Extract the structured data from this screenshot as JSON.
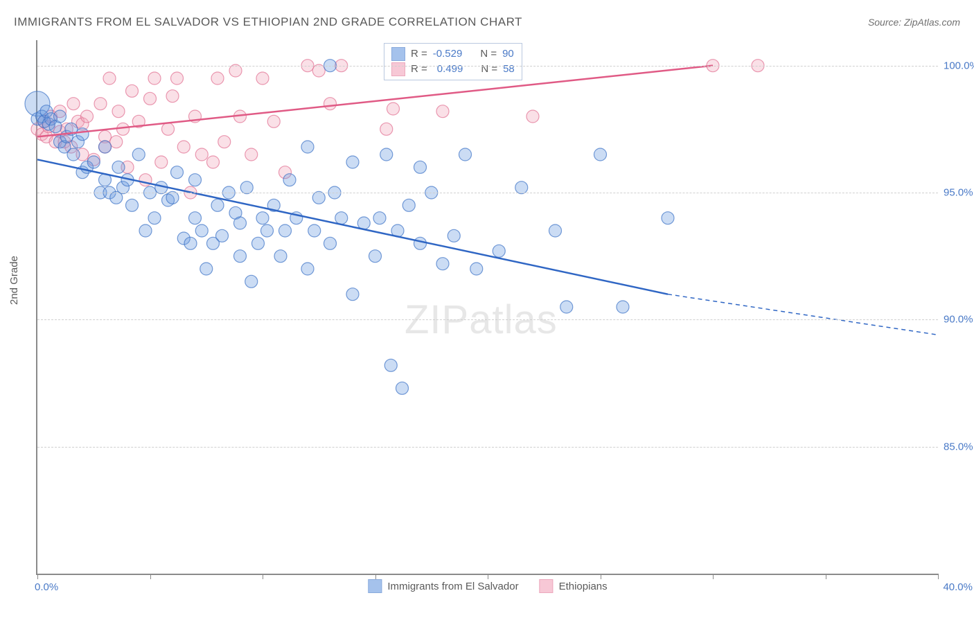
{
  "title": "IMMIGRANTS FROM EL SALVADOR VS ETHIOPIAN 2ND GRADE CORRELATION CHART",
  "source": "Source: ZipAtlas.com",
  "watermark": "ZIPatlas",
  "ylabel": "2nd Grade",
  "chart": {
    "type": "scatter-with-regression",
    "background_color": "#ffffff",
    "grid_color": "#cfcfcf",
    "axis_color": "#8a8a8a",
    "tick_label_color": "#4a7ac7",
    "label_color": "#5a5a5a",
    "title_fontsize": 17,
    "label_fontsize": 15,
    "xlim": [
      0,
      40
    ],
    "ylim": [
      80,
      101
    ],
    "ytick_positions": [
      85,
      90,
      95,
      100
    ],
    "ytick_labels": [
      "85.0%",
      "90.0%",
      "95.0%",
      "100.0%"
    ],
    "xtick_positions": [
      0,
      5,
      10,
      15,
      20,
      25,
      30,
      35,
      40
    ],
    "xlim_labels": {
      "min": "0.0%",
      "max": "40.0%"
    },
    "marker_radius": 9,
    "marker_radius_large": 18,
    "marker_fill_opacity": 0.35,
    "marker_stroke_width": 1.2,
    "series": [
      {
        "name": "Immigrants from El Salvador",
        "color": "#6a9ae0",
        "stroke": "#3c72c6",
        "line_color": "#2f66c4",
        "line_width": 2.5,
        "R": "-0.529",
        "N": "90",
        "regression": {
          "x1": 0,
          "y1": 96.3,
          "x2": 28,
          "y2": 91.0,
          "dash_x2": 40,
          "dash_y2": 89.4
        },
        "points": [
          [
            0.0,
            97.9
          ],
          [
            0.2,
            98.0
          ],
          [
            0.3,
            97.8
          ],
          [
            0.4,
            98.2
          ],
          [
            0.5,
            97.7
          ],
          [
            0.6,
            97.9
          ],
          [
            0.8,
            97.6
          ],
          [
            1.0,
            98.0
          ],
          [
            1.0,
            97.0
          ],
          [
            1.2,
            96.8
          ],
          [
            1.3,
            97.2
          ],
          [
            1.5,
            97.5
          ],
          [
            1.6,
            96.5
          ],
          [
            1.8,
            97.0
          ],
          [
            2.0,
            97.3
          ],
          [
            2.0,
            95.8
          ],
          [
            2.2,
            96.0
          ],
          [
            2.5,
            96.2
          ],
          [
            2.8,
            95.0
          ],
          [
            3.0,
            96.8
          ],
          [
            3.0,
            95.5
          ],
          [
            3.2,
            95.0
          ],
          [
            3.5,
            94.8
          ],
          [
            3.6,
            96.0
          ],
          [
            3.8,
            95.2
          ],
          [
            4.0,
            95.5
          ],
          [
            4.2,
            94.5
          ],
          [
            4.5,
            96.5
          ],
          [
            4.8,
            93.5
          ],
          [
            5.0,
            95.0
          ],
          [
            5.2,
            94.0
          ],
          [
            5.5,
            95.2
          ],
          [
            5.8,
            94.7
          ],
          [
            6.0,
            94.8
          ],
          [
            6.2,
            95.8
          ],
          [
            6.5,
            93.2
          ],
          [
            6.8,
            93.0
          ],
          [
            7.0,
            94.0
          ],
          [
            7.0,
            95.5
          ],
          [
            7.3,
            93.5
          ],
          [
            7.5,
            92.0
          ],
          [
            7.8,
            93.0
          ],
          [
            8.0,
            94.5
          ],
          [
            8.2,
            93.3
          ],
          [
            8.5,
            95.0
          ],
          [
            8.8,
            94.2
          ],
          [
            9.0,
            92.5
          ],
          [
            9.0,
            93.8
          ],
          [
            9.3,
            95.2
          ],
          [
            9.5,
            91.5
          ],
          [
            9.8,
            93.0
          ],
          [
            10.0,
            94.0
          ],
          [
            10.2,
            93.5
          ],
          [
            10.5,
            94.5
          ],
          [
            10.8,
            92.5
          ],
          [
            11.0,
            93.5
          ],
          [
            11.2,
            95.5
          ],
          [
            11.5,
            94.0
          ],
          [
            12.0,
            92.0
          ],
          [
            12.0,
            96.8
          ],
          [
            12.3,
            93.5
          ],
          [
            12.5,
            94.8
          ],
          [
            13.0,
            100.0
          ],
          [
            13.0,
            93.0
          ],
          [
            13.2,
            95.0
          ],
          [
            13.5,
            94.0
          ],
          [
            14.0,
            96.2
          ],
          [
            14.0,
            91.0
          ],
          [
            14.5,
            93.8
          ],
          [
            15.0,
            92.5
          ],
          [
            15.2,
            94.0
          ],
          [
            15.5,
            96.5
          ],
          [
            15.7,
            88.2
          ],
          [
            16.0,
            93.5
          ],
          [
            16.2,
            87.3
          ],
          [
            16.5,
            94.5
          ],
          [
            17.0,
            93.0
          ],
          [
            17.0,
            96.0
          ],
          [
            17.5,
            95.0
          ],
          [
            18.0,
            92.2
          ],
          [
            18.5,
            93.3
          ],
          [
            19.0,
            96.5
          ],
          [
            19.5,
            92.0
          ],
          [
            20.5,
            92.7
          ],
          [
            21.5,
            95.2
          ],
          [
            23.0,
            93.5
          ],
          [
            23.5,
            90.5
          ],
          [
            25.0,
            96.5
          ],
          [
            26.0,
            90.5
          ],
          [
            28.0,
            94.0
          ]
        ],
        "large_point": [
          0.0,
          98.5
        ]
      },
      {
        "name": "Ethiopians",
        "color": "#f2a5bb",
        "stroke": "#e16f92",
        "line_color": "#e05a85",
        "line_width": 2.5,
        "R": "0.499",
        "N": "58",
        "regression": {
          "x1": 0,
          "y1": 97.2,
          "x2": 30,
          "y2": 100.0
        },
        "points": [
          [
            0.0,
            97.5
          ],
          [
            0.2,
            97.3
          ],
          [
            0.3,
            97.8
          ],
          [
            0.4,
            97.2
          ],
          [
            0.5,
            97.6
          ],
          [
            0.6,
            98.0
          ],
          [
            0.8,
            97.0
          ],
          [
            1.0,
            97.4
          ],
          [
            1.0,
            98.2
          ],
          [
            1.2,
            97.0
          ],
          [
            1.3,
            97.5
          ],
          [
            1.5,
            96.8
          ],
          [
            1.6,
            98.5
          ],
          [
            1.8,
            97.8
          ],
          [
            2.0,
            96.5
          ],
          [
            2.0,
            97.7
          ],
          [
            2.2,
            98.0
          ],
          [
            2.5,
            96.3
          ],
          [
            2.8,
            98.5
          ],
          [
            3.0,
            97.2
          ],
          [
            3.0,
            96.8
          ],
          [
            3.2,
            99.5
          ],
          [
            3.5,
            97.0
          ],
          [
            3.6,
            98.2
          ],
          [
            3.8,
            97.5
          ],
          [
            4.0,
            96.0
          ],
          [
            4.2,
            99.0
          ],
          [
            4.5,
            97.8
          ],
          [
            4.8,
            95.5
          ],
          [
            5.0,
            98.7
          ],
          [
            5.2,
            99.5
          ],
          [
            5.5,
            96.2
          ],
          [
            5.8,
            97.5
          ],
          [
            6.0,
            98.8
          ],
          [
            6.2,
            99.5
          ],
          [
            6.5,
            96.8
          ],
          [
            6.8,
            95.0
          ],
          [
            7.0,
            98.0
          ],
          [
            7.3,
            96.5
          ],
          [
            7.8,
            96.2
          ],
          [
            8.0,
            99.5
          ],
          [
            8.3,
            97.0
          ],
          [
            8.8,
            99.8
          ],
          [
            9.0,
            98.0
          ],
          [
            9.5,
            96.5
          ],
          [
            10.0,
            99.5
          ],
          [
            10.5,
            97.8
          ],
          [
            11.0,
            95.8
          ],
          [
            12.0,
            100.0
          ],
          [
            12.5,
            99.8
          ],
          [
            13.0,
            98.5
          ],
          [
            13.5,
            100.0
          ],
          [
            15.5,
            97.5
          ],
          [
            15.8,
            98.3
          ],
          [
            18.0,
            98.2
          ],
          [
            22.0,
            98.0
          ],
          [
            30.0,
            100.0
          ],
          [
            32.0,
            100.0
          ]
        ]
      }
    ]
  },
  "legend": {
    "series1": "Immigrants from El Salvador",
    "series2": "Ethiopians"
  },
  "stats_labels": {
    "R": "R =",
    "N": "N ="
  }
}
